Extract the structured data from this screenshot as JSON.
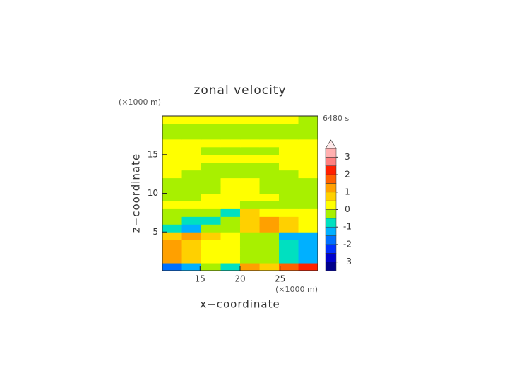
{
  "chart_data": {
    "type": "contourf",
    "title": "zonal velocity",
    "x_label": "x−coordinate",
    "y_label": "z−coordinate",
    "x_unit": "(×1000 m)",
    "y_unit": "(×1000 m)",
    "time_label": "6480 s",
    "xlim": [
      10.3,
      29.7
    ],
    "ylim": [
      0,
      20
    ],
    "xticks": [
      15,
      20,
      25
    ],
    "yticks": [
      5,
      10,
      15
    ],
    "x": [
      11.51,
      13.94,
      16.36,
      18.79,
      21.21,
      23.64,
      26.06,
      28.49
    ],
    "y": [
      0.5,
      1.5,
      2.5,
      3.5,
      4.5,
      5.5,
      6.5,
      7.5,
      8.5,
      9.5,
      10.5,
      11.5,
      12.5,
      13.5,
      14.5,
      15.5,
      16.5,
      17.5,
      18.5,
      19.5
    ],
    "z": [
      [
        -2,
        -1.5,
        -0.5,
        -1,
        1,
        0.5,
        1.5,
        2
      ],
      [
        1.2,
        0.7,
        0.3,
        0.2,
        -0.2,
        -0.3,
        -0.7,
        -1.2
      ],
      [
        1.2,
        0.6,
        0.2,
        0.2,
        -0.2,
        -0.2,
        -0.6,
        -1.2
      ],
      [
        1.3,
        0.8,
        0.3,
        0.2,
        -0.2,
        -0.3,
        -0.8,
        -1.3
      ],
      [
        0.8,
        1.0,
        0.5,
        0.3,
        -0.3,
        -0.5,
        -1.5,
        -1.5
      ],
      [
        -0.8,
        -1.2,
        -0.5,
        -0.2,
        0.5,
        1.0,
        0.8,
        0.3
      ],
      [
        -0.5,
        -0.8,
        -0.8,
        -0.3,
        0.8,
        1.2,
        0.8,
        0.3
      ],
      [
        -0.3,
        -0.3,
        -0.3,
        -0.7,
        0.7,
        0.3,
        0.3,
        0.3
      ],
      [
        0.2,
        0.2,
        0.2,
        0.3,
        -0.3,
        -0.2,
        -0.2,
        -0.2
      ],
      [
        -0.2,
        -0.2,
        0.2,
        0.2,
        0.2,
        0.2,
        -0.2,
        -0.2
      ],
      [
        -0.2,
        -0.2,
        -0.2,
        0.2,
        0.2,
        -0.2,
        -0.2,
        -0.2
      ],
      [
        -0.2,
        -0.2,
        -0.2,
        0.2,
        0.2,
        -0.2,
        -0.2,
        -0.2
      ],
      [
        0.2,
        -0.2,
        -0.2,
        -0.2,
        -0.2,
        -0.2,
        -0.2,
        0.2
      ],
      [
        0.2,
        0.2,
        -0.2,
        -0.2,
        -0.2,
        -0.2,
        0.2,
        0.2
      ],
      [
        0.2,
        0.2,
        0.2,
        0.2,
        0.2,
        0.2,
        0.2,
        0.2
      ],
      [
        0.2,
        0.2,
        -0.2,
        -0.2,
        -0.2,
        -0.2,
        0.2,
        0.2
      ],
      [
        0.2,
        0.2,
        0.2,
        0.2,
        0.2,
        0.2,
        0.2,
        0.2
      ],
      [
        -0.2,
        -0.2,
        -0.2,
        -0.2,
        -0.2,
        -0.2,
        -0.2,
        -0.2
      ],
      [
        -0.2,
        -0.2,
        -0.2,
        -0.2,
        -0.2,
        -0.2,
        -0.2,
        -0.2
      ],
      [
        0.2,
        0.2,
        0.2,
        0.2,
        0.2,
        0.2,
        0.2,
        -0.5
      ]
    ],
    "levels": [
      -3.5,
      -3,
      -2.5,
      -2,
      -1.5,
      -1,
      -0.5,
      0,
      0.5,
      1,
      1.5,
      2,
      2.5,
      3,
      3.5
    ],
    "colors": [
      "#00008b",
      "#0000cd",
      "#0030ff",
      "#0070ff",
      "#00b0ff",
      "#00e0c0",
      "#a8f000",
      "#ffff00",
      "#ffd000",
      "#ffa000",
      "#ff6000",
      "#ff2000",
      "#ff8080",
      "#ffb0b0"
    ],
    "colorbar_ticks": [
      -3,
      -2,
      -1,
      0,
      1,
      2,
      3
    ],
    "extend": "max"
  }
}
